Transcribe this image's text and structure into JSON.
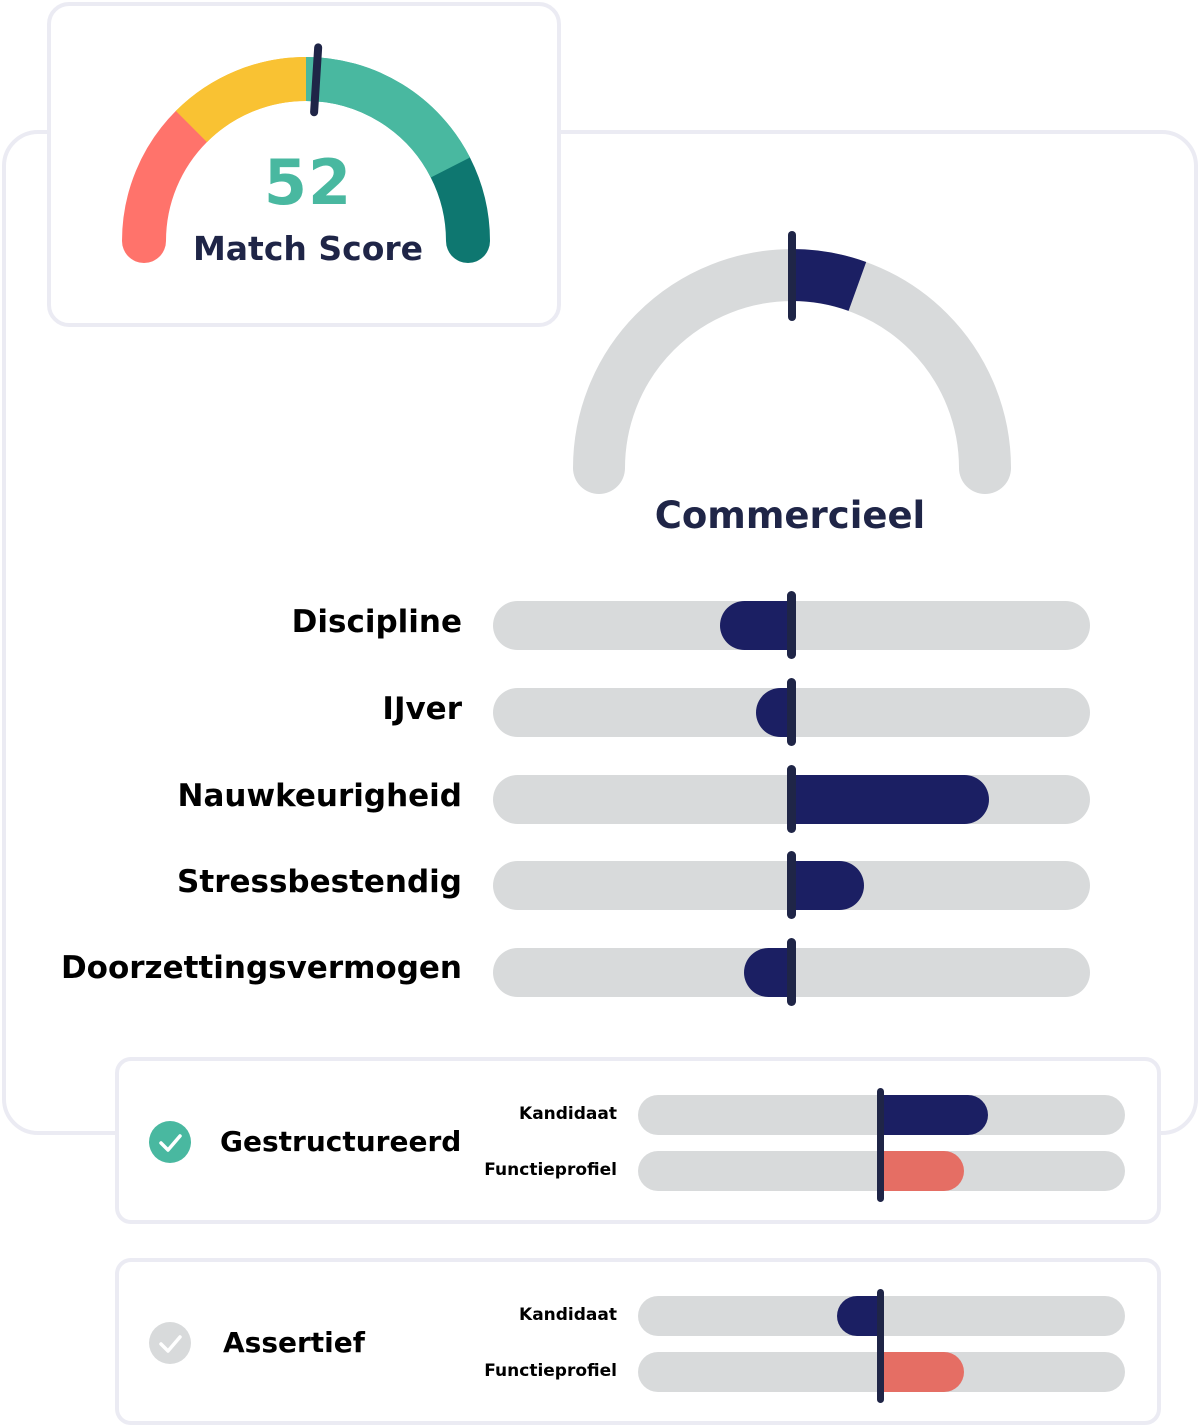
{
  "colors": {
    "navy": "#1b1f63",
    "marker": "#1f2547",
    "track": "#d8dadb",
    "teal": "#49b8a0",
    "dark_teal": "#0e7770",
    "yellow": "#f9c233",
    "coral": "#ff736b",
    "profile": "#e56e64",
    "check_active": "#49b8a0",
    "check_inactive": "#d8dadb",
    "border": "#ebebf3",
    "text": "#000000",
    "title_text": "#1f2547"
  },
  "match_score": {
    "value": "52",
    "label": "Match Score",
    "score": 52,
    "max": 100,
    "segments": [
      {
        "name": "low",
        "from": 0,
        "to": 25,
        "color": "#ff736b"
      },
      {
        "name": "medium",
        "from": 25,
        "to": 50,
        "color": "#f9c233"
      },
      {
        "name": "good",
        "from": 50,
        "to": 85,
        "color": "#49b8a0"
      },
      {
        "name": "excellent",
        "from": 85,
        "to": 100,
        "color": "#0e7770"
      }
    ]
  },
  "category": {
    "title": "Commercieel",
    "gauge_deviation": 11,
    "gauge_max": 100
  },
  "traits": [
    {
      "label": "Discipline",
      "deviation": -12,
      "scale": 100
    },
    {
      "label": "IJver",
      "deviation": -6,
      "scale": 100
    },
    {
      "label": "Nauwkeurigheid",
      "deviation": 33,
      "scale": 100
    },
    {
      "label": "Stressbestendig",
      "deviation": 12,
      "scale": 100
    },
    {
      "label": "Doorzettingsvermogen",
      "deviation": -8,
      "scale": 100
    }
  ],
  "trait_cards": [
    {
      "name": "Gestructureerd",
      "matched": true,
      "rows": [
        {
          "label": "Kandidaat",
          "deviation": 44,
          "scale": 100
        },
        {
          "label": "Functieprofiel",
          "deviation": 34,
          "scale": 100
        }
      ]
    },
    {
      "name": "Assertief",
      "matched": false,
      "rows": [
        {
          "label": "Kandidaat",
          "deviation": -18,
          "scale": 100
        },
        {
          "label": "Functieprofiel",
          "deviation": 34,
          "scale": 100
        }
      ]
    }
  ]
}
